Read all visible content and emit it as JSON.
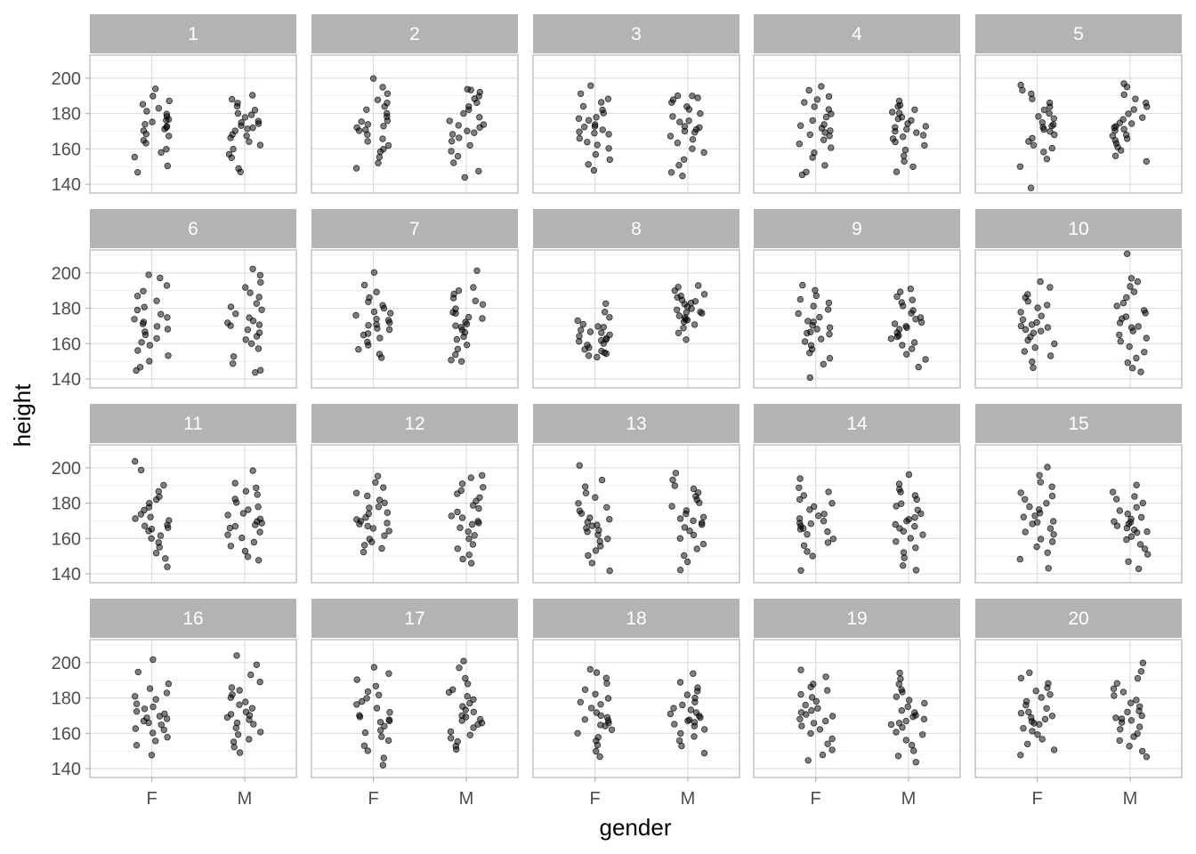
{
  "chart_data": {
    "type": "scatter",
    "xlabel": "gender",
    "ylabel": "height",
    "x_categories": [
      "F",
      "M"
    ],
    "y_ticks": [
      140,
      160,
      180,
      200
    ],
    "ylim": [
      135,
      213
    ],
    "grid": true,
    "jitter": true,
    "point_color": "#000000",
    "point_alpha": 0.5,
    "panels": [
      {
        "label": "1",
        "F": [
          147,
          150,
          155,
          158,
          160,
          163,
          165,
          167,
          168,
          170,
          171,
          172,
          173,
          174,
          175,
          176,
          177,
          178,
          180,
          181,
          183,
          185,
          187,
          190,
          194
        ],
        "M": [
          147,
          149,
          155,
          157,
          160,
          162,
          164,
          166,
          167,
          168,
          170,
          171,
          172,
          173,
          174,
          175,
          176,
          178,
          179,
          180,
          182,
          184,
          186,
          188,
          190
        ]
      },
      {
        "label": "2",
        "F": [
          149,
          152,
          155,
          158,
          160,
          162,
          164,
          166,
          168,
          170,
          171,
          172,
          173,
          174,
          175,
          176,
          178,
          180,
          182,
          184,
          186,
          188,
          191,
          195,
          200
        ],
        "M": [
          144,
          147,
          152,
          156,
          159,
          162,
          164,
          166,
          168,
          169,
          170,
          172,
          173,
          174,
          176,
          178,
          180,
          182,
          184,
          186,
          188,
          190,
          192,
          193,
          194
        ]
      },
      {
        "label": "3",
        "F": [
          148,
          151,
          154,
          157,
          160,
          162,
          164,
          166,
          168,
          169,
          170,
          171,
          172,
          173,
          174,
          176,
          177,
          178,
          180,
          182,
          184,
          186,
          188,
          191,
          196
        ],
        "M": [
          145,
          147,
          151,
          154,
          158,
          160,
          163,
          165,
          167,
          169,
          170,
          171,
          172,
          173,
          175,
          176,
          178,
          180,
          182,
          184,
          186,
          188,
          189,
          190,
          190
        ]
      },
      {
        "label": "4",
        "F": [
          145,
          147,
          151,
          155,
          158,
          161,
          163,
          165,
          167,
          168,
          169,
          170,
          172,
          173,
          174,
          176,
          178,
          180,
          182,
          184,
          186,
          188,
          190,
          193,
          195
        ],
        "M": [
          147,
          150,
          153,
          156,
          159,
          162,
          164,
          166,
          167,
          168,
          169,
          170,
          171,
          172,
          173,
          174,
          176,
          177,
          178,
          180,
          181,
          182,
          184,
          185,
          187
        ]
      },
      {
        "label": "5",
        "F": [
          138,
          150,
          154,
          158,
          160,
          162,
          164,
          166,
          168,
          170,
          171,
          172,
          173,
          174,
          175,
          177,
          178,
          180,
          182,
          184,
          186,
          188,
          191,
          193,
          196
        ],
        "M": [
          153,
          156,
          159,
          161,
          163,
          165,
          166,
          167,
          168,
          170,
          171,
          172,
          173,
          174,
          175,
          177,
          178,
          180,
          182,
          184,
          186,
          188,
          191,
          195,
          197
        ]
      },
      {
        "label": "6",
        "F": [
          145,
          147,
          150,
          153,
          156,
          159,
          161,
          163,
          165,
          167,
          168,
          170,
          171,
          172,
          174,
          175,
          177,
          179,
          181,
          184,
          187,
          190,
          193,
          197,
          199
        ],
        "M": [
          144,
          145,
          149,
          153,
          157,
          160,
          162,
          164,
          166,
          168,
          170,
          171,
          172,
          173,
          175,
          177,
          179,
          181,
          183,
          186,
          189,
          192,
          195,
          199,
          202
        ]
      },
      {
        "label": "7",
        "F": [
          152,
          154,
          157,
          159,
          161,
          163,
          165,
          166,
          168,
          169,
          170,
          171,
          172,
          173,
          174,
          176,
          177,
          178,
          180,
          182,
          184,
          186,
          189,
          193,
          200
        ],
        "M": [
          150,
          151,
          154,
          157,
          159,
          162,
          164,
          166,
          168,
          169,
          170,
          171,
          172,
          174,
          175,
          177,
          178,
          180,
          182,
          184,
          186,
          188,
          190,
          192,
          201
        ]
      },
      {
        "label": "8",
        "F": [
          152,
          153,
          154,
          155,
          156,
          157,
          158,
          159,
          160,
          161,
          162,
          162,
          163,
          164,
          165,
          166,
          167,
          168,
          169,
          170,
          171,
          173,
          175,
          178,
          183
        ],
        "M": [
          162,
          166,
          169,
          171,
          172,
          173,
          174,
          175,
          176,
          177,
          178,
          178,
          179,
          180,
          181,
          182,
          183,
          184,
          185,
          186,
          187,
          188,
          190,
          192,
          193
        ]
      },
      {
        "label": "9",
        "F": [
          141,
          148,
          152,
          155,
          157,
          159,
          161,
          163,
          165,
          166,
          167,
          168,
          169,
          170,
          172,
          173,
          175,
          177,
          179,
          181,
          183,
          185,
          187,
          190,
          193
        ],
        "M": [
          147,
          151,
          154,
          157,
          159,
          161,
          163,
          164,
          165,
          166,
          168,
          169,
          170,
          171,
          172,
          174,
          175,
          177,
          179,
          181,
          183,
          185,
          187,
          189,
          191
        ]
      },
      {
        "label": "10",
        "F": [
          146,
          150,
          153,
          156,
          158,
          160,
          162,
          164,
          166,
          167,
          168,
          169,
          170,
          171,
          172,
          174,
          176,
          178,
          180,
          182,
          184,
          186,
          188,
          192,
          195
        ],
        "M": [
          144,
          146,
          149,
          152,
          155,
          158,
          161,
          163,
          165,
          167,
          169,
          170,
          172,
          174,
          175,
          177,
          179,
          181,
          183,
          186,
          189,
          192,
          195,
          197,
          211
        ]
      },
      {
        "label": "11",
        "F": [
          144,
          149,
          152,
          155,
          158,
          160,
          162,
          164,
          165,
          166,
          167,
          168,
          170,
          171,
          172,
          174,
          176,
          178,
          180,
          182,
          184,
          187,
          190,
          199,
          204
        ],
        "M": [
          148,
          150,
          153,
          156,
          158,
          160,
          162,
          164,
          166,
          167,
          168,
          169,
          170,
          171,
          173,
          174,
          176,
          178,
          180,
          182,
          185,
          187,
          189,
          191,
          198
        ]
      },
      {
        "label": "12",
        "F": [
          152,
          154,
          156,
          158,
          160,
          162,
          164,
          166,
          167,
          168,
          169,
          170,
          171,
          172,
          174,
          175,
          177,
          178,
          180,
          182,
          184,
          186,
          189,
          192,
          195
        ],
        "M": [
          146,
          148,
          151,
          154,
          157,
          160,
          162,
          164,
          166,
          168,
          169,
          170,
          172,
          173,
          175,
          177,
          179,
          181,
          183,
          185,
          187,
          189,
          191,
          194,
          196
        ]
      },
      {
        "label": "13",
        "F": [
          142,
          146,
          150,
          153,
          156,
          158,
          160,
          162,
          164,
          165,
          166,
          167,
          168,
          169,
          171,
          172,
          174,
          176,
          178,
          180,
          183,
          186,
          189,
          193,
          201
        ],
        "M": [
          142,
          147,
          150,
          154,
          157,
          160,
          162,
          164,
          166,
          168,
          169,
          170,
          171,
          172,
          174,
          176,
          178,
          180,
          182,
          184,
          186,
          188,
          190,
          193,
          197
        ]
      },
      {
        "label": "14",
        "F": [
          142,
          150,
          153,
          156,
          158,
          160,
          162,
          164,
          165,
          166,
          167,
          168,
          169,
          170,
          171,
          173,
          174,
          176,
          178,
          180,
          182,
          184,
          186,
          189,
          194
        ],
        "M": [
          142,
          145,
          149,
          152,
          155,
          158,
          160,
          162,
          164,
          166,
          167,
          168,
          170,
          171,
          172,
          174,
          176,
          178,
          180,
          182,
          184,
          186,
          188,
          191,
          196
        ]
      },
      {
        "label": "15",
        "F": [
          143,
          148,
          152,
          155,
          158,
          160,
          162,
          164,
          166,
          168,
          169,
          170,
          172,
          173,
          174,
          176,
          178,
          180,
          182,
          184,
          186,
          189,
          192,
          196,
          200
        ],
        "M": [
          143,
          147,
          151,
          154,
          157,
          159,
          161,
          163,
          164,
          165,
          166,
          167,
          168,
          169,
          170,
          171,
          172,
          174,
          176,
          178,
          180,
          182,
          184,
          186,
          190
        ]
      },
      {
        "label": "16",
        "F": [
          148,
          153,
          156,
          158,
          160,
          162,
          163,
          165,
          166,
          167,
          168,
          169,
          170,
          171,
          172,
          174,
          175,
          177,
          179,
          181,
          183,
          185,
          188,
          195,
          202
        ],
        "M": [
          149,
          152,
          155,
          157,
          159,
          161,
          163,
          165,
          166,
          168,
          169,
          170,
          171,
          172,
          174,
          176,
          178,
          180,
          182,
          184,
          186,
          189,
          193,
          199,
          204
        ]
      },
      {
        "label": "17",
        "F": [
          142,
          146,
          150,
          153,
          156,
          158,
          160,
          162,
          164,
          166,
          167,
          168,
          169,
          170,
          172,
          174,
          176,
          178,
          180,
          182,
          184,
          187,
          190,
          194,
          197
        ],
        "M": [
          151,
          153,
          155,
          157,
          159,
          161,
          163,
          165,
          166,
          167,
          168,
          169,
          170,
          172,
          173,
          175,
          177,
          179,
          181,
          183,
          185,
          188,
          191,
          197,
          201
        ]
      },
      {
        "label": "18",
        "F": [
          147,
          150,
          153,
          156,
          158,
          160,
          162,
          164,
          165,
          166,
          167,
          168,
          169,
          170,
          172,
          174,
          176,
          178,
          180,
          182,
          185,
          188,
          191,
          194,
          196
        ],
        "M": [
          149,
          153,
          156,
          158,
          160,
          162,
          164,
          165,
          166,
          167,
          168,
          169,
          170,
          171,
          172,
          173,
          174,
          176,
          178,
          180,
          182,
          184,
          186,
          189,
          194
        ]
      },
      {
        "label": "19",
        "F": [
          145,
          148,
          151,
          154,
          157,
          160,
          162,
          164,
          166,
          167,
          168,
          170,
          171,
          172,
          173,
          174,
          176,
          178,
          180,
          182,
          184,
          186,
          188,
          192,
          196
        ],
        "M": [
          144,
          147,
          150,
          153,
          156,
          159,
          161,
          163,
          165,
          166,
          167,
          168,
          169,
          170,
          172,
          173,
          175,
          177,
          179,
          181,
          183,
          185,
          188,
          191,
          194
        ]
      },
      {
        "label": "20",
        "F": [
          148,
          151,
          154,
          157,
          159,
          161,
          163,
          165,
          166,
          167,
          168,
          169,
          170,
          171,
          172,
          174,
          176,
          178,
          180,
          182,
          184,
          186,
          188,
          191,
          194
        ],
        "M": [
          147,
          150,
          153,
          156,
          158,
          160,
          162,
          164,
          166,
          167,
          168,
          169,
          170,
          172,
          173,
          175,
          177,
          179,
          181,
          183,
          185,
          188,
          191,
          195,
          200
        ]
      }
    ]
  }
}
